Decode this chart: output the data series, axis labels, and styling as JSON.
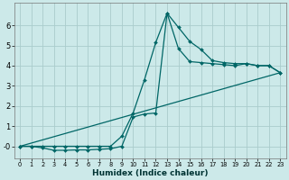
{
  "xlabel": "Humidex (Indice chaleur)",
  "bg_color": "#cce9e9",
  "grid_color": "#aacccc",
  "line_color": "#006666",
  "xlim": [
    -0.5,
    23.5
  ],
  "ylim": [
    -0.6,
    7.1
  ],
  "ytick_vals": [
    0,
    1,
    2,
    3,
    4,
    5,
    6
  ],
  "ytick_labels": [
    "-0",
    "1",
    "2",
    "3",
    "4",
    "5",
    "6"
  ],
  "xtick_vals": [
    0,
    1,
    2,
    3,
    4,
    5,
    6,
    7,
    8,
    9,
    10,
    11,
    12,
    13,
    14,
    15,
    16,
    17,
    18,
    19,
    20,
    21,
    22,
    23
  ],
  "line1_x": [
    0,
    1,
    2,
    3,
    4,
    5,
    6,
    7,
    8,
    9,
    10,
    11,
    12,
    13,
    14,
    15,
    16,
    17,
    18,
    19,
    20,
    21,
    22,
    23
  ],
  "line1_y": [
    0.0,
    0.0,
    -0.08,
    -0.2,
    -0.2,
    -0.18,
    -0.18,
    -0.15,
    -0.12,
    0.0,
    1.45,
    1.6,
    1.65,
    6.6,
    4.85,
    4.2,
    4.15,
    4.1,
    4.05,
    4.0,
    4.1,
    4.0,
    4.0,
    3.65
  ],
  "line2_x": [
    0,
    1,
    2,
    3,
    4,
    5,
    6,
    7,
    8,
    9,
    10,
    11,
    12,
    13,
    14,
    15,
    16,
    17,
    18,
    19,
    20,
    21,
    22,
    23
  ],
  "line2_y": [
    0.0,
    0.0,
    0.0,
    0.0,
    0.0,
    0.0,
    0.0,
    0.0,
    0.0,
    0.5,
    1.65,
    3.3,
    5.15,
    6.6,
    5.9,
    5.2,
    4.8,
    4.25,
    4.15,
    4.1,
    4.1,
    4.0,
    4.0,
    3.65
  ],
  "line3_x": [
    0,
    23
  ],
  "line3_y": [
    0.0,
    3.65
  ]
}
